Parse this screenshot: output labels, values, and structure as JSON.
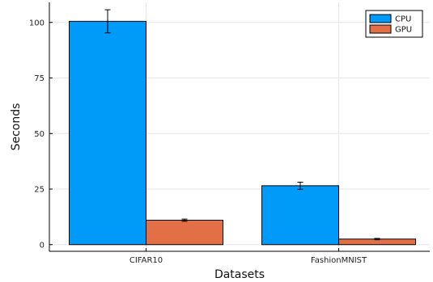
{
  "chart_data": {
    "type": "bar",
    "xlabel": "Datasets",
    "ylabel": "Seconds",
    "categories": [
      "CIFAR10",
      "FashionMNIST"
    ],
    "ylim": [
      -3,
      109
    ],
    "yticks": [
      0,
      25,
      50,
      75,
      100
    ],
    "grid": true,
    "legend_position": "top-right",
    "series": [
      {
        "name": "CPU",
        "color": "#009af9",
        "values": [
          100.5,
          26.5
        ],
        "errors": [
          5.2,
          1.6
        ]
      },
      {
        "name": "GPU",
        "color": "#e26f46",
        "values": [
          11.0,
          2.5
        ],
        "errors": [
          0.5,
          0.3
        ]
      }
    ]
  }
}
